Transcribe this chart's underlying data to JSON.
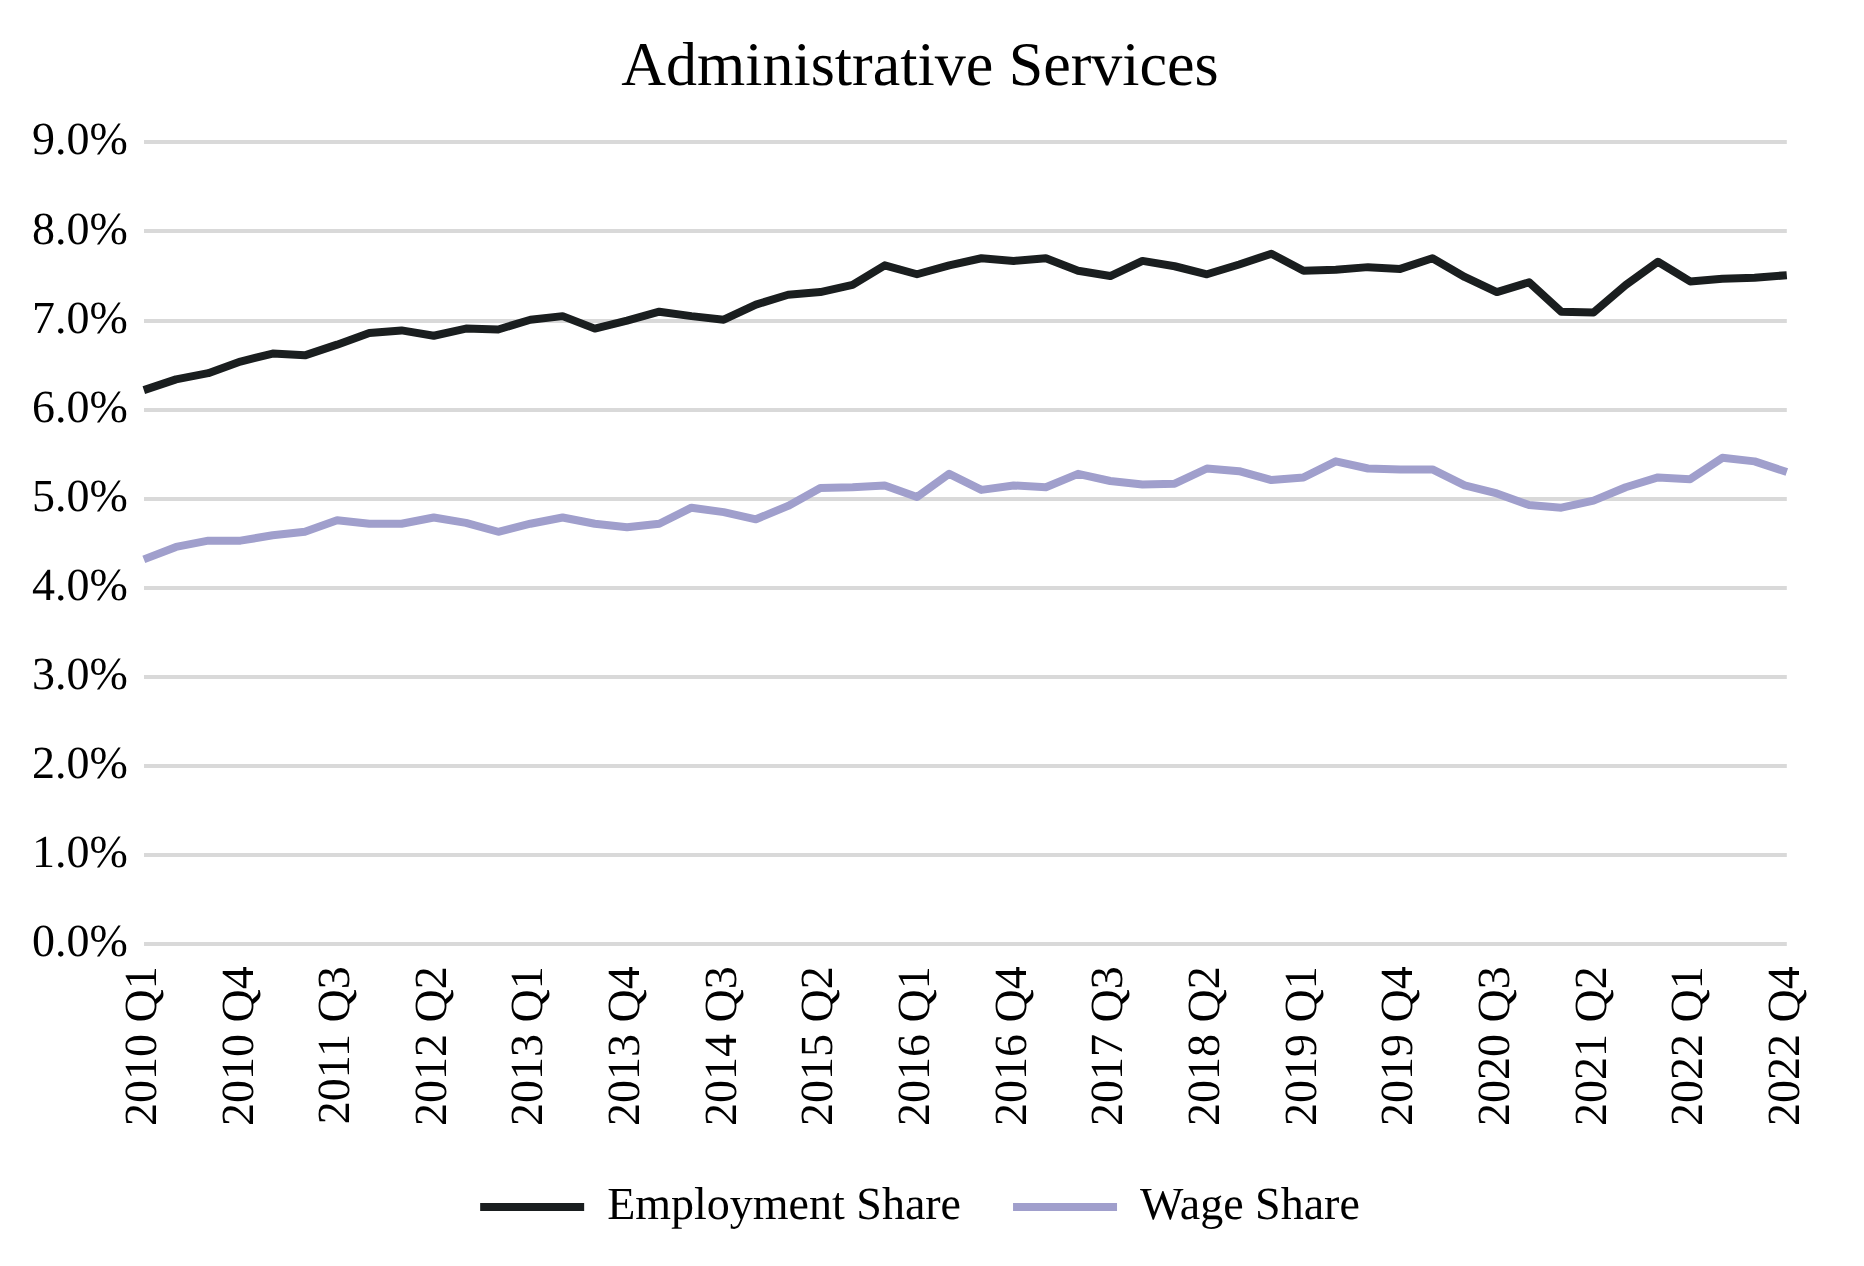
{
  "chart_data": {
    "type": "line",
    "title": "Administrative Services",
    "categories": [
      "2010 Q1",
      null,
      null,
      "2010 Q4",
      null,
      null,
      "2011 Q3",
      null,
      null,
      "2012 Q2",
      null,
      null,
      "2013 Q1",
      null,
      null,
      "2013 Q4",
      null,
      null,
      "2014 Q3",
      null,
      null,
      "2015 Q2",
      null,
      null,
      "2016 Q1",
      null,
      null,
      "2016 Q4",
      null,
      null,
      "2017 Q3",
      null,
      null,
      "2018 Q2",
      null,
      null,
      "2019 Q1",
      null,
      null,
      "2019 Q4",
      null,
      null,
      "2020 Q3",
      null,
      null,
      "2021 Q2",
      null,
      null,
      "2022 Q1",
      null,
      null,
      "2022 Q4"
    ],
    "series": [
      {
        "name": "Employment Share",
        "color": "#1a1e1f",
        "values": [
          6.22,
          6.34,
          6.41,
          6.54,
          6.63,
          6.61,
          6.73,
          6.86,
          6.89,
          6.83,
          6.91,
          6.9,
          7.01,
          7.05,
          6.91,
          7.0,
          7.1,
          7.05,
          7.01,
          7.18,
          7.29,
          7.32,
          7.4,
          7.62,
          7.52,
          7.62,
          7.7,
          7.67,
          7.7,
          7.56,
          7.5,
          7.67,
          7.61,
          7.52,
          7.63,
          7.75,
          7.56,
          7.57,
          7.6,
          7.58,
          7.7,
          7.49,
          7.32,
          7.43,
          7.1,
          7.09,
          7.4,
          7.66,
          7.44,
          7.47,
          7.48,
          7.51
        ]
      },
      {
        "name": "Wage Share",
        "color": "#a09fcc",
        "values": [
          4.32,
          4.46,
          4.53,
          4.53,
          4.59,
          4.63,
          4.76,
          4.72,
          4.72,
          4.79,
          4.73,
          4.63,
          4.72,
          4.79,
          4.72,
          4.68,
          4.72,
          4.9,
          4.85,
          4.77,
          4.92,
          5.12,
          5.13,
          5.15,
          5.02,
          5.28,
          5.1,
          5.15,
          5.13,
          5.28,
          5.2,
          5.16,
          5.17,
          5.34,
          5.31,
          5.21,
          5.24,
          5.42,
          5.34,
          5.33,
          5.33,
          5.15,
          5.06,
          4.93,
          4.9,
          4.98,
          5.13,
          5.24,
          5.22,
          5.46,
          5.42,
          5.3
        ]
      }
    ],
    "ylim": [
      0,
      9
    ],
    "yticks": [
      {
        "value": 0,
        "label": "0.0%"
      },
      {
        "value": 1,
        "label": "1.0%"
      },
      {
        "value": 2,
        "label": "2.0%"
      },
      {
        "value": 3,
        "label": "3.0%"
      },
      {
        "value": 4,
        "label": "4.0%"
      },
      {
        "value": 5,
        "label": "5.0%"
      },
      {
        "value": 6,
        "label": "6.0%"
      },
      {
        "value": 7,
        "label": "7.0%"
      },
      {
        "value": 8,
        "label": "8.0%"
      },
      {
        "value": 9,
        "label": "9.0%"
      }
    ],
    "grid": "y",
    "legend": "bottom",
    "marker": "none",
    "line_style": "solid"
  }
}
